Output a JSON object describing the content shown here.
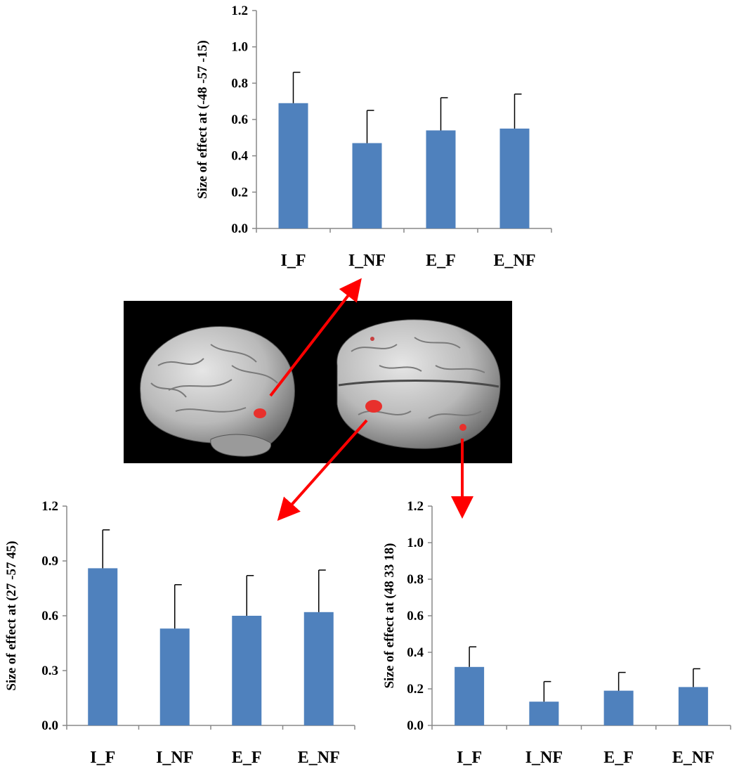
{
  "colors": {
    "bar": "#4f81bd",
    "arrow": "#ff0000",
    "brain_background": "#000000",
    "brain_activation": "#e8302c"
  },
  "brain_image": {
    "views": [
      "left-hemisphere-lateral",
      "inferior"
    ]
  },
  "chart_data": [
    {
      "id": "top",
      "type": "bar",
      "ylabel": "Size of effect at (-48 -57 -15)",
      "categories": [
        "I_F",
        "I_NF",
        "E_F",
        "E_NF"
      ],
      "values": [
        0.69,
        0.47,
        0.54,
        0.55
      ],
      "errors": [
        0.17,
        0.18,
        0.18,
        0.19
      ],
      "ylim": [
        0,
        1.2
      ],
      "yticks": [
        "0.0",
        "0.2",
        "0.4",
        "0.6",
        "0.8",
        "1.0",
        "1.2"
      ],
      "grid": false,
      "legend": "none"
    },
    {
      "id": "bottom-left",
      "type": "bar",
      "ylabel": "Size of effect at (27 -57 45)",
      "categories": [
        "I_F",
        "I_NF",
        "E_F",
        "E_NF"
      ],
      "values": [
        0.86,
        0.53,
        0.6,
        0.62
      ],
      "errors": [
        0.21,
        0.24,
        0.22,
        0.23
      ],
      "ylim": [
        0,
        1.2
      ],
      "yticks": [
        "0.0",
        "0.3",
        "0.6",
        "0.9",
        "1.2"
      ],
      "grid": false,
      "legend": "none"
    },
    {
      "id": "bottom-right",
      "type": "bar",
      "ylabel": "Size of effect at (48 33 18)",
      "categories": [
        "I_F",
        "I_NF",
        "E_F",
        "E_NF"
      ],
      "values": [
        0.32,
        0.13,
        0.19,
        0.21
      ],
      "errors": [
        0.11,
        0.11,
        0.1,
        0.1
      ],
      "ylim": [
        0,
        1.2
      ],
      "yticks": [
        "0.0",
        "0.2",
        "0.4",
        "0.6",
        "0.8",
        "1.0",
        "1.2"
      ],
      "grid": false,
      "legend": "none"
    }
  ]
}
